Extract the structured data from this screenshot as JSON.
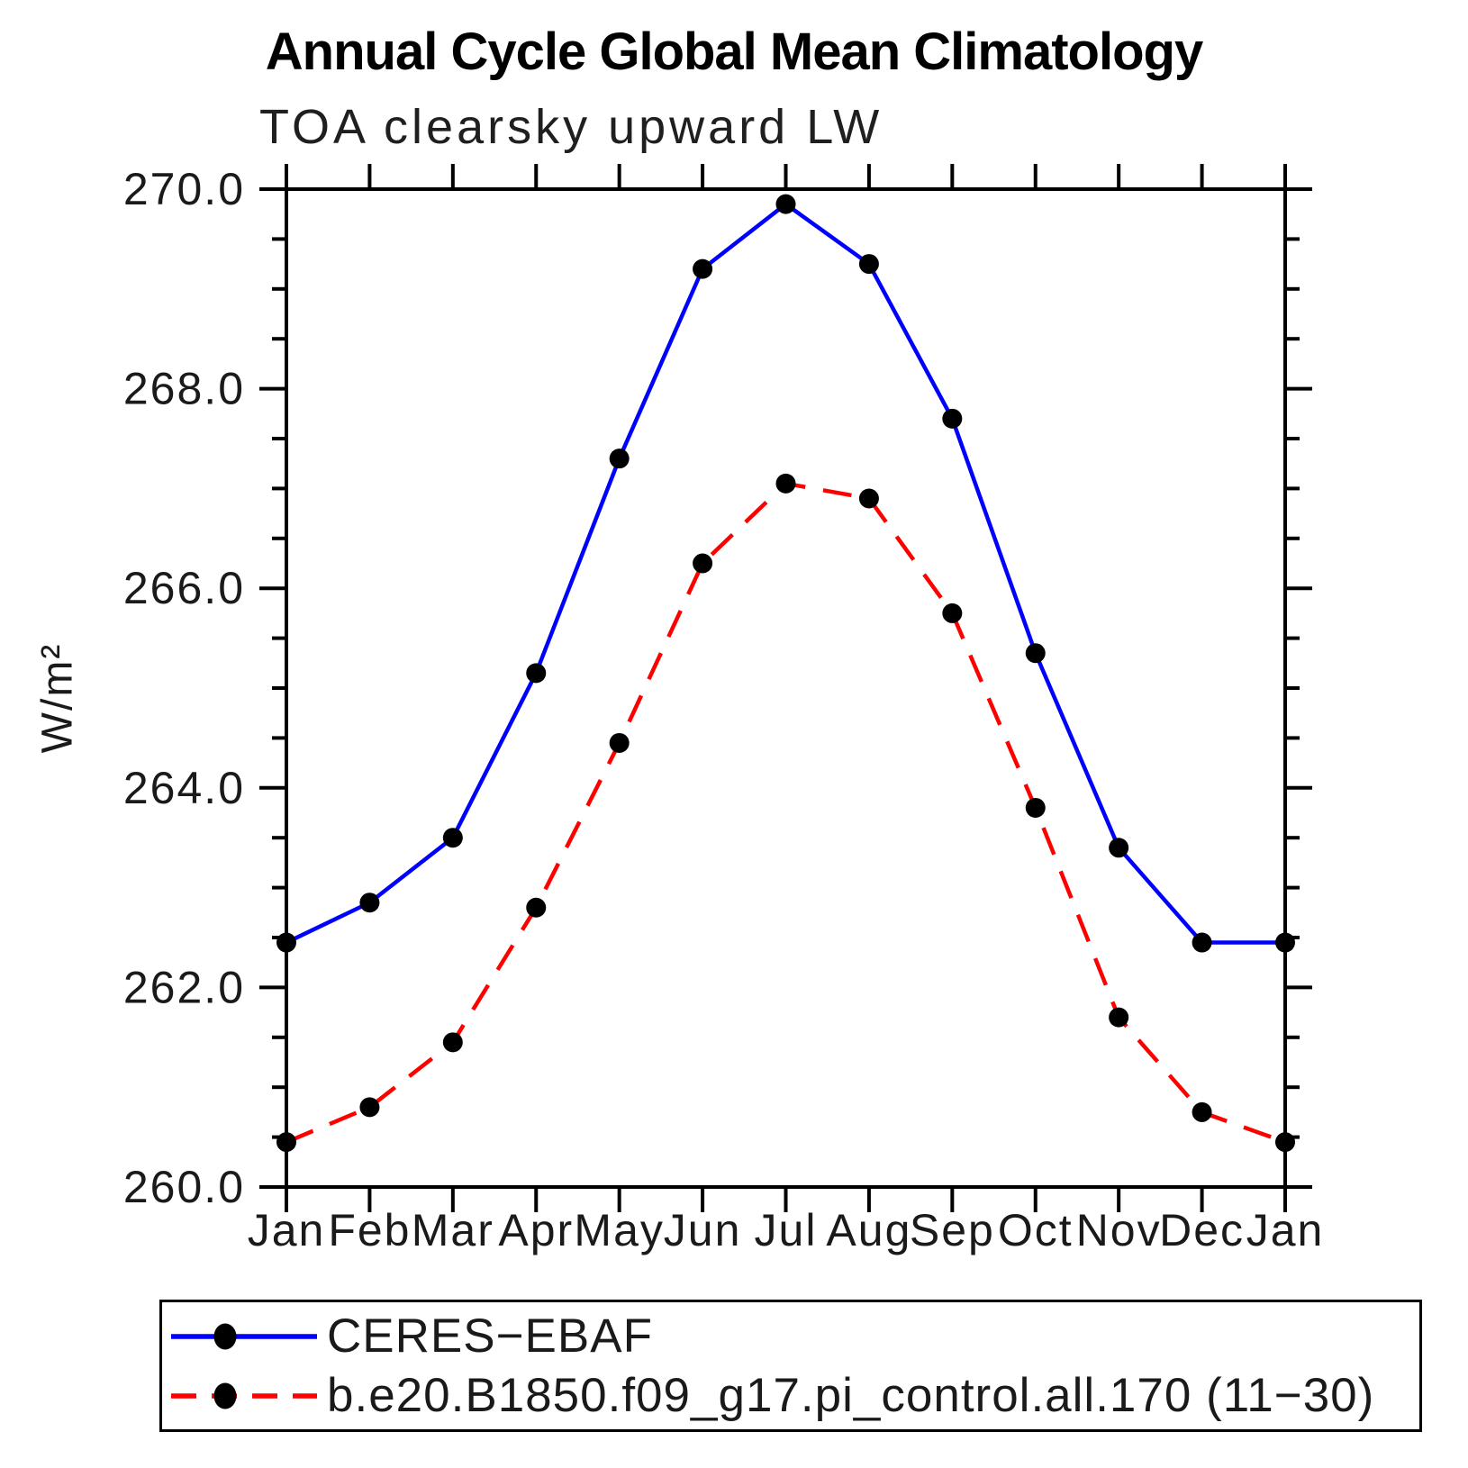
{
  "page": {
    "background": "#ffffff",
    "text_color": "#000000"
  },
  "chart_data": {
    "type": "line",
    "title": "Annual Cycle Global Mean Climatology",
    "subtitle": "TOA clearsky upward LW",
    "ylabel": "W/m²",
    "xlabel": "",
    "x_categories": [
      "Jan",
      "Feb",
      "Mar",
      "Apr",
      "May",
      "Jun",
      "Jul",
      "Aug",
      "Sep",
      "Oct",
      "Nov",
      "Dec",
      "Jan"
    ],
    "ylim": [
      260.0,
      270.0
    ],
    "ytick_values": [
      260,
      262,
      264,
      266,
      268,
      270
    ],
    "ytick_labels": [
      "260.0",
      "262.0",
      "264.0",
      "266.0",
      "268.0",
      "270.0"
    ],
    "ytick_minor_step": 0.5,
    "grid": false,
    "frame": "box",
    "legend_position": "bottom",
    "axis_color": "#000000",
    "marker_color": "#000000",
    "series": [
      {
        "name": "CERES−EBAF",
        "color": "#0000ff",
        "line_style": "solid",
        "marker": "filled-circle",
        "values": [
          262.45,
          262.85,
          263.5,
          265.15,
          267.3,
          269.2,
          269.85,
          269.25,
          267.7,
          265.35,
          263.4,
          262.45,
          262.45
        ]
      },
      {
        "name": "b.e20.B1850.f09_g17.pi_control.all.170 (11−30)",
        "color": "#ff0000",
        "line_style": "dashed",
        "marker": "filled-circle",
        "values": [
          260.45,
          260.8,
          261.45,
          262.8,
          264.45,
          266.25,
          267.05,
          266.9,
          265.75,
          263.8,
          261.7,
          260.75,
          260.45
        ]
      }
    ]
  }
}
